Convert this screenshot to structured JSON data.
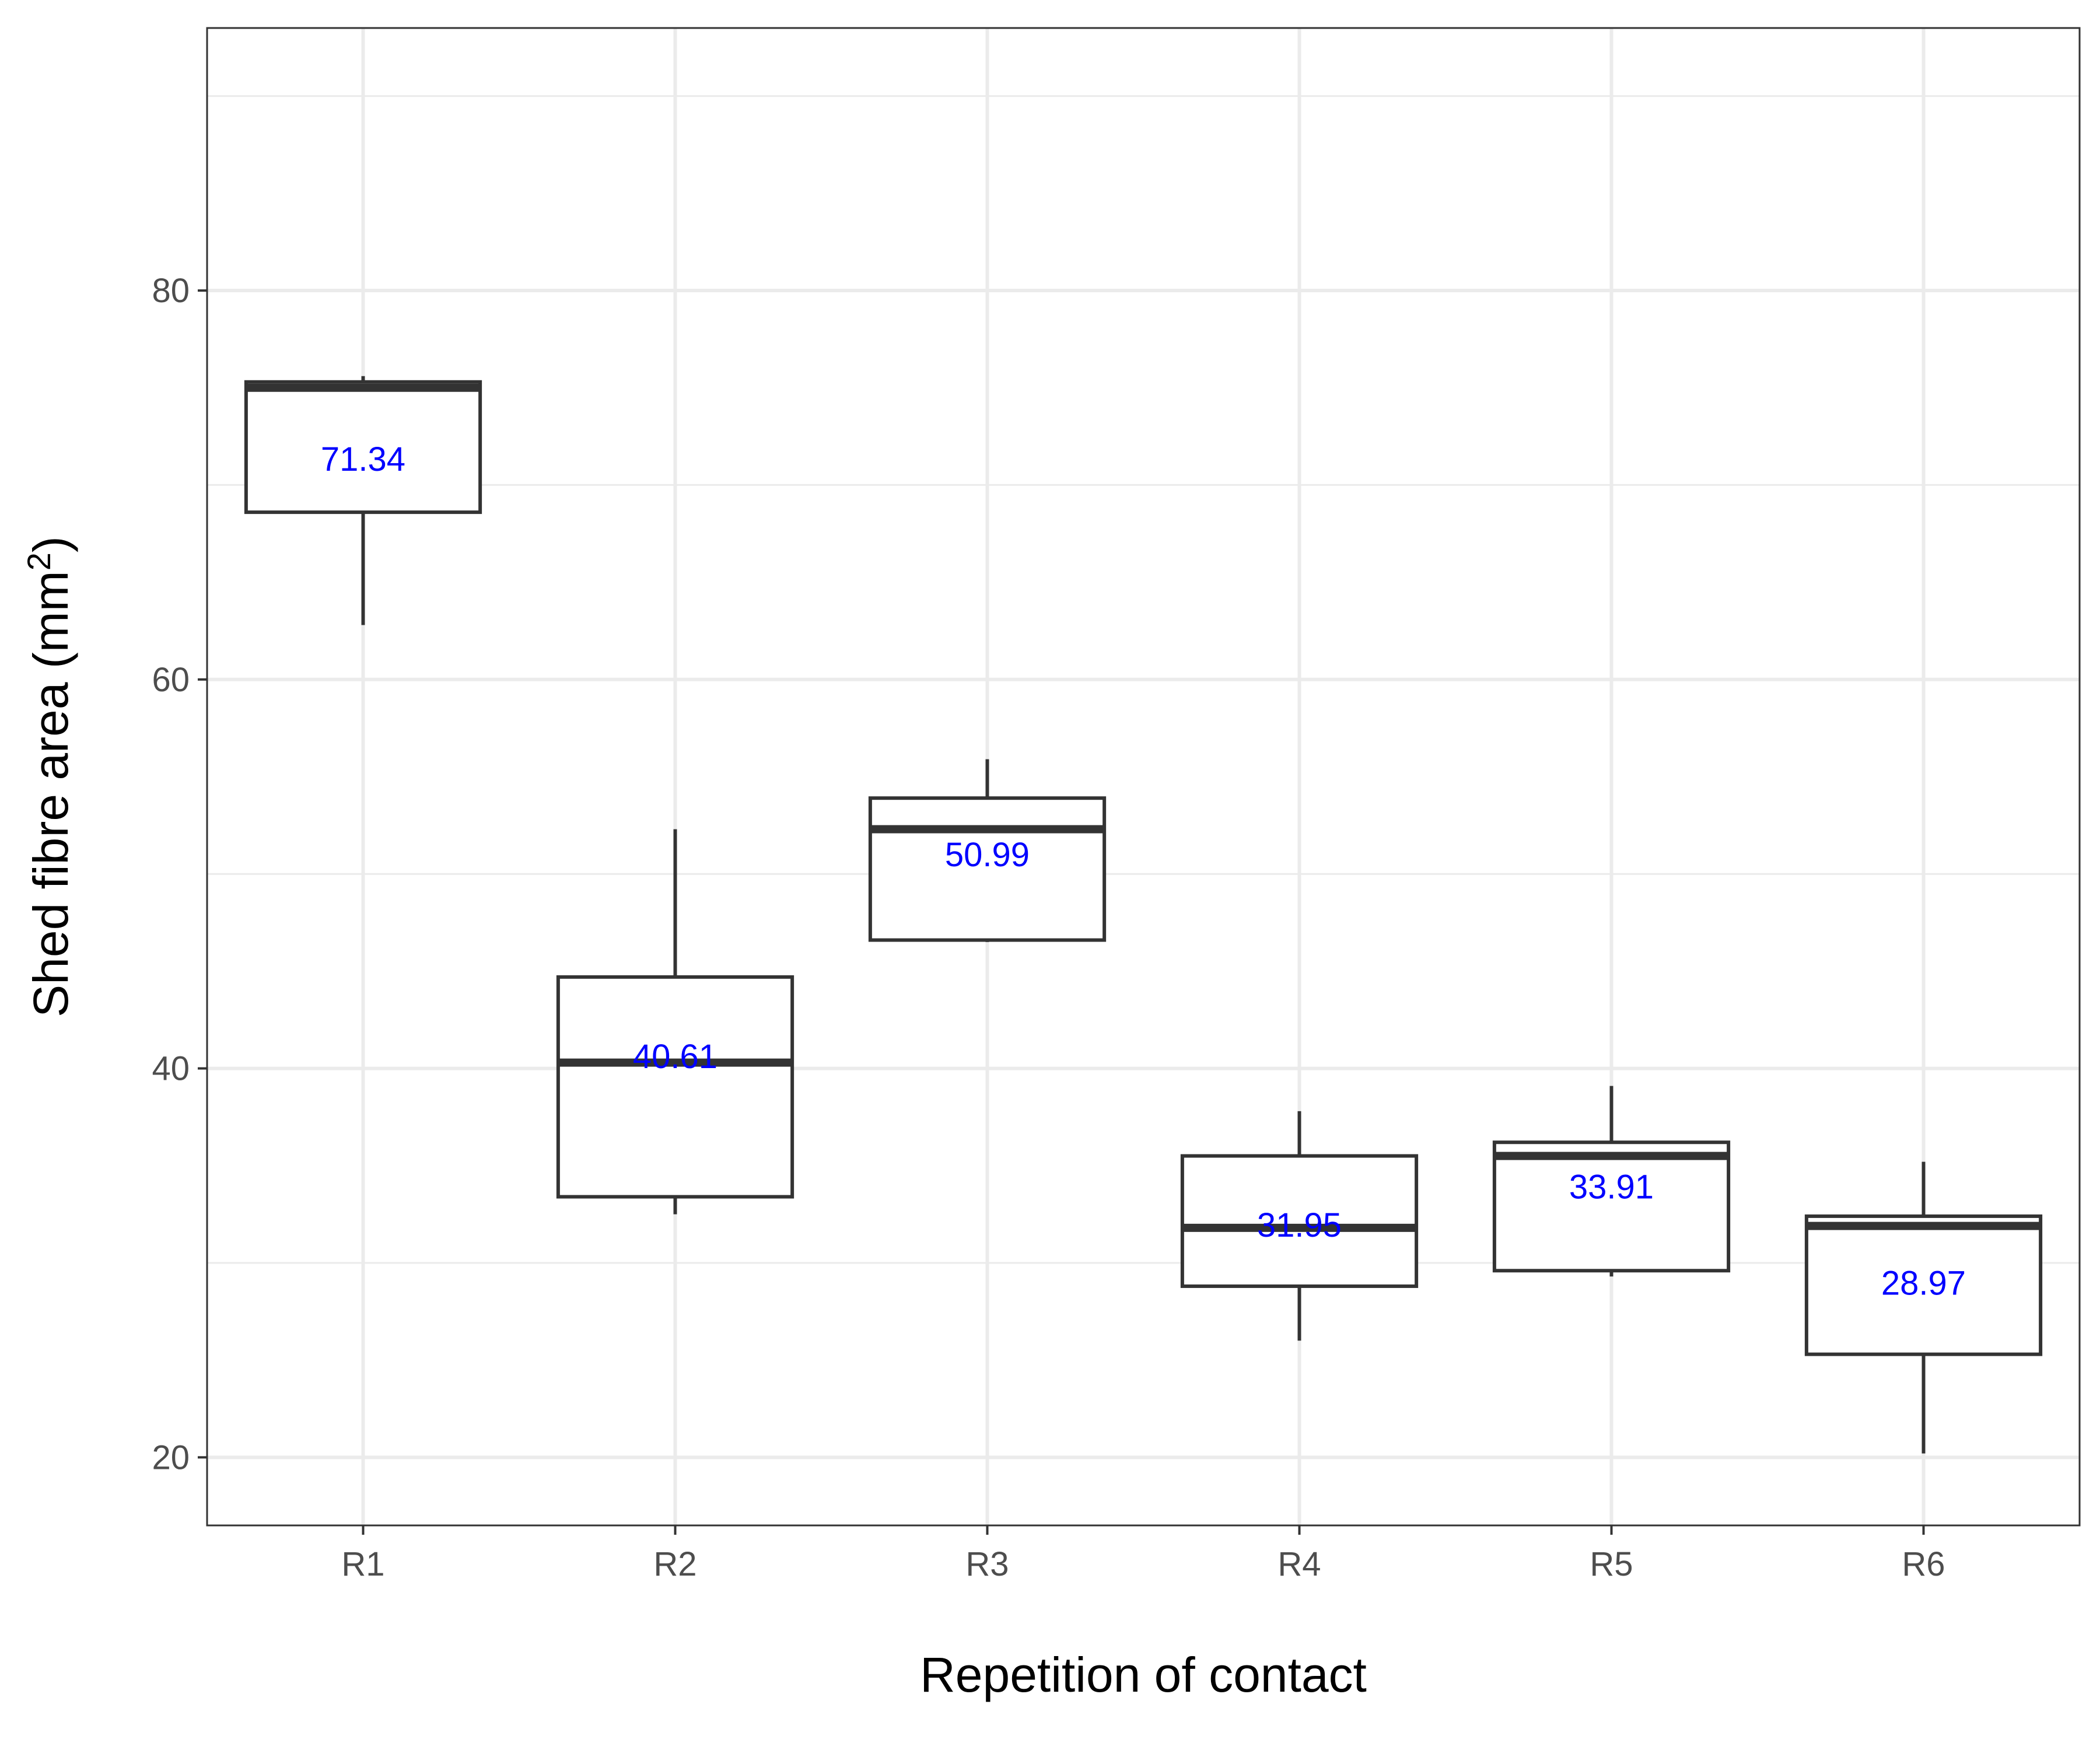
{
  "chart_data": {
    "type": "boxplot",
    "title": "",
    "xlabel": "Repetition of contact",
    "ylabel": "Shed fibre area (mm",
    "ylabel_sup": "2",
    "ylabel_close": ")",
    "categories": [
      "R1",
      "R2",
      "R3",
      "R4",
      "R5",
      "R6"
    ],
    "yticks": [
      "20",
      "40",
      "60",
      "80"
    ],
    "ylim": [
      16.5,
      93.5
    ],
    "grid": true,
    "boxes": [
      {
        "category": "R1",
        "whisker_low": 62.8,
        "q1": 68.6,
        "median": 75.0,
        "q3": 75.3,
        "whisker_high": 75.6,
        "mean_label": "71.34"
      },
      {
        "category": "R2",
        "whisker_low": 32.5,
        "q1": 33.4,
        "median": 40.3,
        "q3": 44.7,
        "whisker_high": 52.3,
        "mean_label": "40.61"
      },
      {
        "category": "R3",
        "whisker_low": 46.5,
        "q1": 46.6,
        "median": 52.3,
        "q3": 53.9,
        "whisker_high": 55.9,
        "mean_label": "50.99"
      },
      {
        "category": "R4",
        "whisker_low": 26.0,
        "q1": 28.8,
        "median": 31.8,
        "q3": 35.5,
        "whisker_high": 37.8,
        "mean_label": "31.95"
      },
      {
        "category": "R5",
        "whisker_low": 29.3,
        "q1": 29.6,
        "median": 35.5,
        "q3": 36.2,
        "whisker_high": 39.1,
        "mean_label": "33.91"
      },
      {
        "category": "R6",
        "whisker_low": 20.2,
        "q1": 25.3,
        "median": 31.9,
        "q3": 32.4,
        "whisker_high": 35.2,
        "mean_label": "28.97"
      }
    ],
    "colors": {
      "box_stroke": "#333333",
      "mean_label": "#0000ff",
      "grid": "#ebebeb",
      "panel_border": "#333333",
      "tick_text": "#4d4d4d"
    }
  }
}
